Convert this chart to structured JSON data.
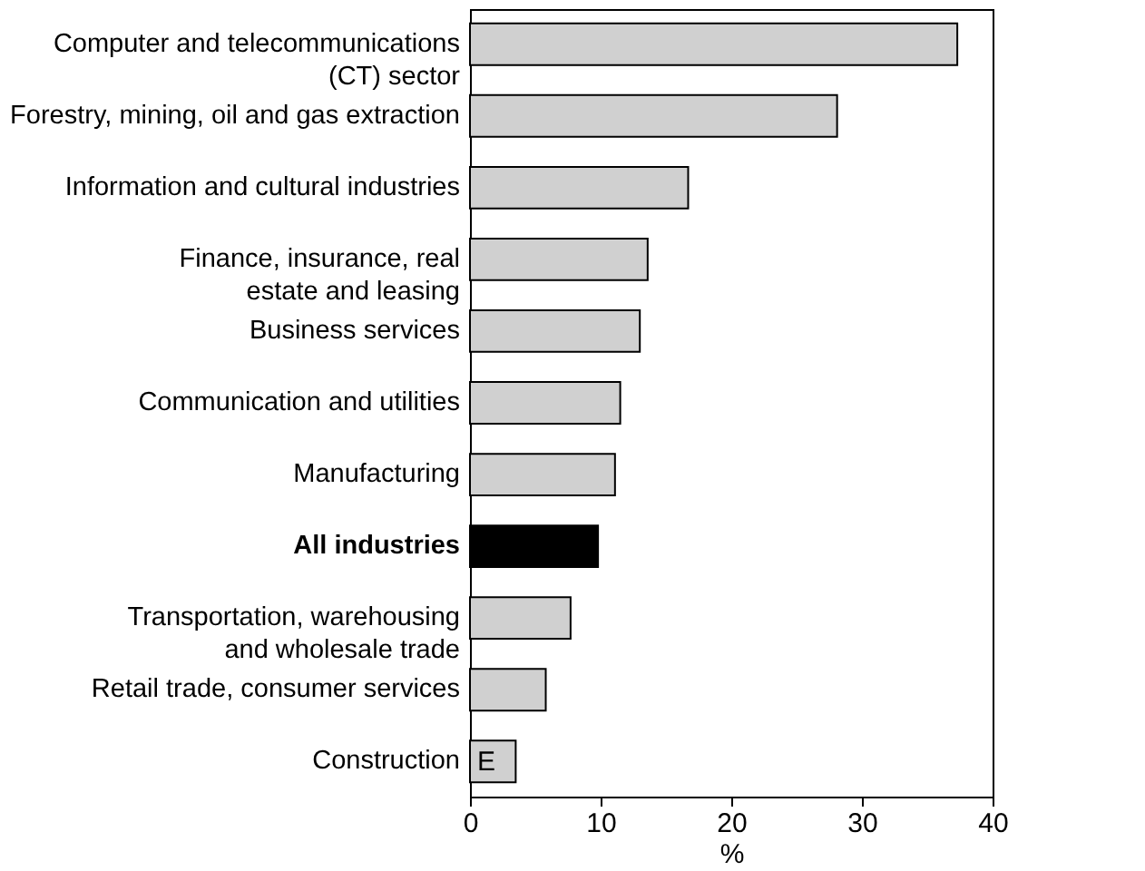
{
  "chart_data": {
    "type": "bar",
    "orientation": "horizontal",
    "xlabel": "%",
    "categories": [
      "Computer and telecommunications\n(CT) sector",
      "Forestry, mining, oil and gas extraction",
      "Information and cultural industries",
      "Finance, insurance, real\nestate and leasing",
      "Business services",
      "Communication and utilities",
      "Manufacturing",
      "All industries",
      "Transportation, warehousing\nand wholesale trade",
      "Retail trade, consumer services",
      "Construction"
    ],
    "values": [
      37.3,
      28.1,
      16.7,
      13.6,
      13.0,
      11.5,
      11.1,
      9.8,
      7.7,
      5.8,
      3.5
    ],
    "colors": [
      "#d0d0d0",
      "#d0d0d0",
      "#d0d0d0",
      "#d0d0d0",
      "#d0d0d0",
      "#d0d0d0",
      "#d0d0d0",
      "#000000",
      "#d0d0d0",
      "#d0d0d0",
      "#d0d0d0"
    ],
    "value_labels": [
      null,
      null,
      null,
      null,
      null,
      null,
      null,
      null,
      null,
      null,
      "E"
    ],
    "xlim": [
      0,
      40
    ],
    "xticks": [
      0,
      10,
      20,
      30,
      40
    ],
    "grid": false
  }
}
